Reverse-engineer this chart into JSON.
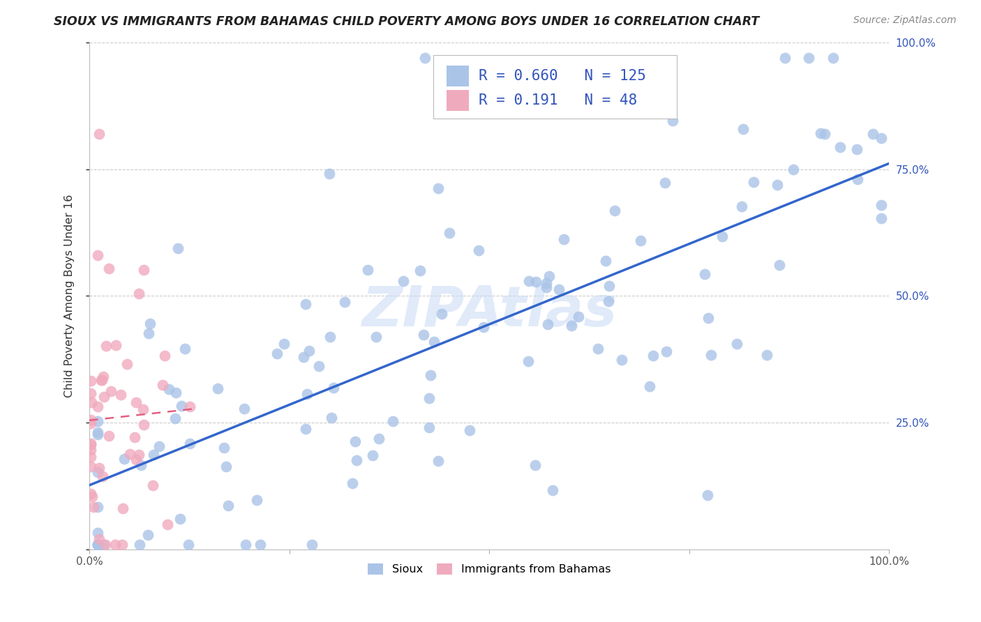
{
  "title": "SIOUX VS IMMIGRANTS FROM BAHAMAS CHILD POVERTY AMONG BOYS UNDER 16 CORRELATION CHART",
  "source": "Source: ZipAtlas.com",
  "ylabel": "Child Poverty Among Boys Under 16",
  "xlim": [
    0.0,
    1.0
  ],
  "ylim": [
    0.0,
    1.0
  ],
  "sioux_color": "#aac4e8",
  "bahamas_color": "#f0aabe",
  "sioux_R": 0.66,
  "sioux_N": 125,
  "bahamas_R": 0.191,
  "bahamas_N": 48,
  "legend_label_sioux": "Sioux",
  "legend_label_bahamas": "Immigrants from Bahamas",
  "watermark": "ZIPAtlas",
  "sioux_line_color": "#3366cc",
  "bahamas_line_color": "#e06080",
  "grid_color": "#cccccc",
  "label_color": "#3355bb",
  "title_color": "#222222",
  "source_color": "#888888"
}
